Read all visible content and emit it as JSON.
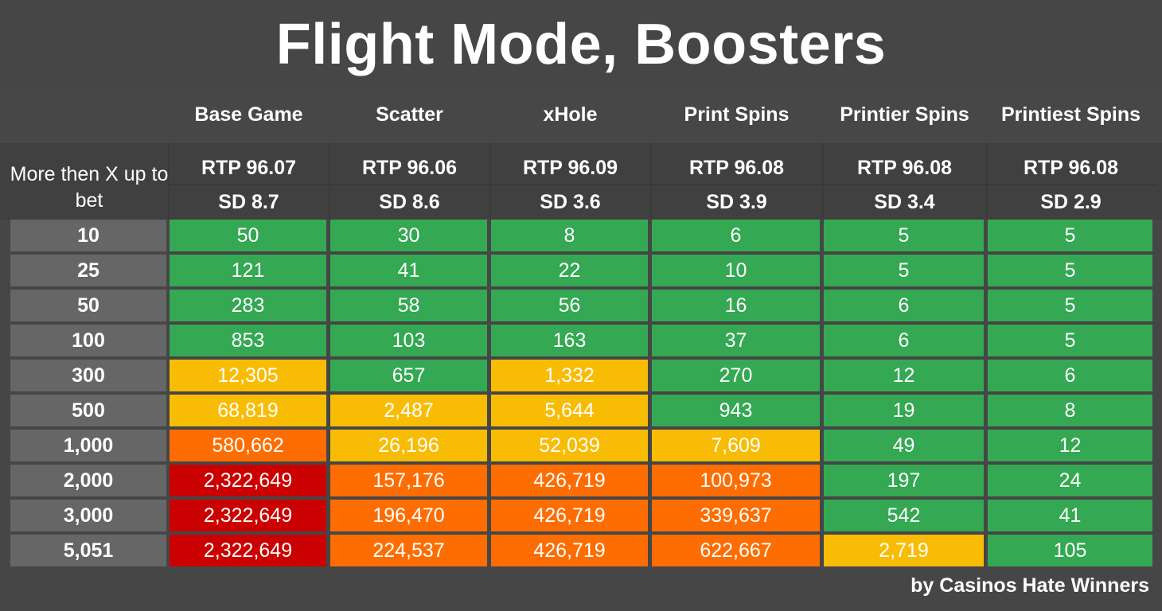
{
  "title": "Flight Mode, Boosters",
  "credit": "by Casinos Hate Winners",
  "row_header_label": "More then X up to bet",
  "colors": {
    "green": "#34a853",
    "yellow": "#f9bc05",
    "orange": "#fe6d01",
    "red": "#cb0000",
    "row_label_bg": "#666666",
    "background": "#464646"
  },
  "chart_data": {
    "type": "table",
    "title": "Flight Mode, Boosters",
    "row_header": "More then X up to bet",
    "columns": [
      {
        "name": "Base Game",
        "rtp": "RTP 96.07",
        "sd": "SD 8.7"
      },
      {
        "name": "Scatter",
        "rtp": "RTP 96.06",
        "sd": "SD 8.6"
      },
      {
        "name": "xHole",
        "rtp": "RTP 96.09",
        "sd": "SD 3.6"
      },
      {
        "name": "Print Spins",
        "rtp": "RTP 96.08",
        "sd": "SD 3.9"
      },
      {
        "name": "Printier Spins",
        "rtp": "RTP 96.08",
        "sd": "SD 3.4"
      },
      {
        "name": "Printiest Spins",
        "rtp": "RTP 96.08",
        "sd": "SD 2.9"
      }
    ],
    "rows": [
      {
        "label": "10",
        "values": [
          "50",
          "30",
          "8",
          "6",
          "5",
          "5"
        ],
        "colors": [
          "green",
          "green",
          "green",
          "green",
          "green",
          "green"
        ]
      },
      {
        "label": "25",
        "values": [
          "121",
          "41",
          "22",
          "10",
          "5",
          "5"
        ],
        "colors": [
          "green",
          "green",
          "green",
          "green",
          "green",
          "green"
        ]
      },
      {
        "label": "50",
        "values": [
          "283",
          "58",
          "56",
          "16",
          "6",
          "5"
        ],
        "colors": [
          "green",
          "green",
          "green",
          "green",
          "green",
          "green"
        ]
      },
      {
        "label": "100",
        "values": [
          "853",
          "103",
          "163",
          "37",
          "6",
          "5"
        ],
        "colors": [
          "green",
          "green",
          "green",
          "green",
          "green",
          "green"
        ]
      },
      {
        "label": "300",
        "values": [
          "12,305",
          "657",
          "1,332",
          "270",
          "12",
          "6"
        ],
        "colors": [
          "yellow",
          "green",
          "yellow",
          "green",
          "green",
          "green"
        ]
      },
      {
        "label": "500",
        "values": [
          "68,819",
          "2,487",
          "5,644",
          "943",
          "19",
          "8"
        ],
        "colors": [
          "yellow",
          "yellow",
          "yellow",
          "green",
          "green",
          "green"
        ]
      },
      {
        "label": "1,000",
        "values": [
          "580,662",
          "26,196",
          "52,039",
          "7,609",
          "49",
          "12"
        ],
        "colors": [
          "orange",
          "yellow",
          "yellow",
          "yellow",
          "green",
          "green"
        ]
      },
      {
        "label": "2,000",
        "values": [
          "2,322,649",
          "157,176",
          "426,719",
          "100,973",
          "197",
          "24"
        ],
        "colors": [
          "red",
          "orange",
          "orange",
          "orange",
          "green",
          "green"
        ]
      },
      {
        "label": "3,000",
        "values": [
          "2,322,649",
          "196,470",
          "426,719",
          "339,637",
          "542",
          "41"
        ],
        "colors": [
          "red",
          "orange",
          "orange",
          "orange",
          "green",
          "green"
        ]
      },
      {
        "label": "5,051",
        "values": [
          "2,322,649",
          "224,537",
          "426,719",
          "622,667",
          "2,719",
          "105"
        ],
        "colors": [
          "red",
          "orange",
          "orange",
          "orange",
          "yellow",
          "green"
        ]
      }
    ]
  }
}
